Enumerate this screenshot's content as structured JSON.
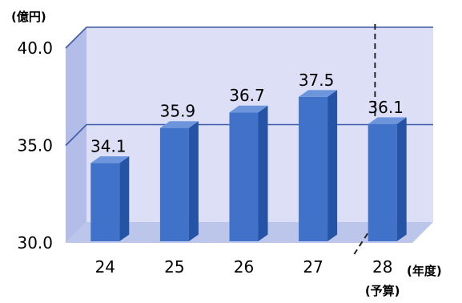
{
  "chart_data": {
    "type": "bar",
    "title": "",
    "yunit": "(億円)",
    "xunit": "(年度)",
    "categories": [
      "24",
      "25",
      "26",
      "27",
      "28"
    ],
    "category_notes": [
      "",
      "",
      "",
      "",
      "(予算)"
    ],
    "values": [
      34.1,
      35.9,
      36.7,
      37.5,
      36.1
    ],
    "value_labels": [
      "34.1",
      "35.9",
      "36.7",
      "37.5",
      "36.1"
    ],
    "ylim": [
      30.0,
      40.0
    ],
    "yticks": [
      {
        "value": 30.0,
        "label": "30.0"
      },
      {
        "value": 35.0,
        "label": "35.0"
      },
      {
        "value": 40.0,
        "label": "40.0"
      }
    ],
    "grid": true,
    "dashed_divider_between": [
      "27",
      "28"
    ],
    "colors": {
      "bar_front": "#3f72c8",
      "bar_side": "#2553a5",
      "bar_top": "#6c95dc",
      "back_wall": "#dcdff5",
      "side_wall": "#b3bde8",
      "floor": "#bcc6ea",
      "grid": "#3b5aa8"
    }
  }
}
